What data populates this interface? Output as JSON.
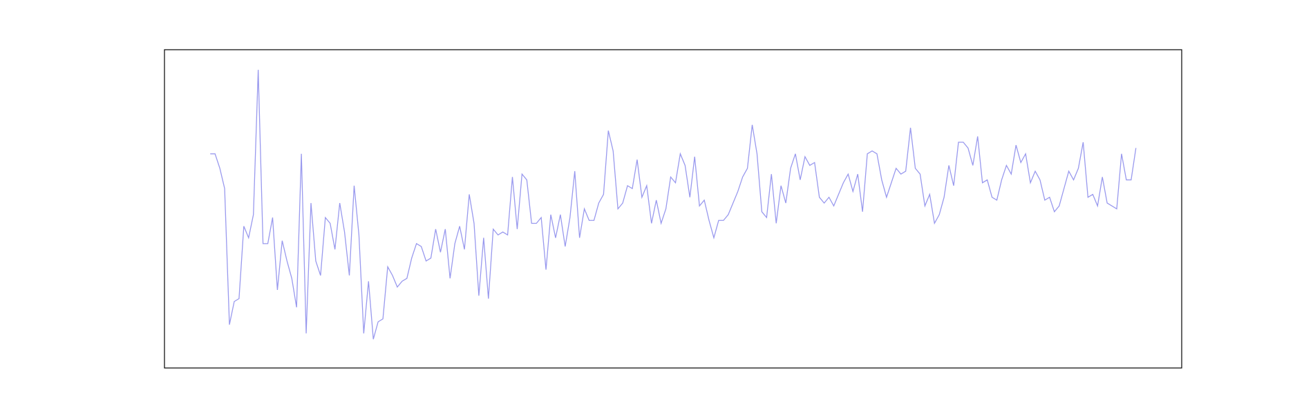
{
  "chart_data": {
    "type": "line",
    "title": "",
    "xlabel": "",
    "ylabel": "",
    "grid": false,
    "axes_visible": false,
    "ylim": [
      0,
      100
    ],
    "series": [
      {
        "color": "#9999ee",
        "values": [
          69,
          69,
          64,
          57,
          10,
          18,
          19,
          44,
          40,
          48,
          98,
          38,
          38,
          47,
          22,
          39,
          32,
          26,
          16,
          69,
          7,
          52,
          32,
          27,
          47,
          45,
          36,
          52,
          42,
          27,
          58,
          41,
          7,
          25,
          5,
          11,
          12,
          30,
          27,
          23,
          25,
          26,
          33,
          38,
          37,
          32,
          33,
          43,
          35,
          43,
          26,
          38,
          44,
          36,
          55,
          45,
          20,
          40,
          19,
          43,
          41,
          42,
          41,
          61,
          43,
          62,
          60,
          45,
          45,
          47,
          29,
          48,
          40,
          48,
          37,
          47,
          63,
          40,
          50,
          46,
          46,
          52,
          55,
          77,
          70,
          50,
          52,
          58,
          57,
          67,
          54,
          58,
          45,
          53,
          45,
          50,
          61,
          59,
          69,
          65,
          54,
          68,
          51,
          53,
          46,
          40,
          46,
          46,
          48,
          52,
          56,
          61,
          64,
          79,
          69,
          49,
          47,
          62,
          45,
          58,
          52,
          64,
          69,
          60,
          68,
          65,
          66,
          54,
          52,
          54,
          51,
          55,
          59,
          62,
          56,
          62,
          49,
          69,
          70,
          69,
          60,
          54,
          59,
          64,
          62,
          63,
          78,
          64,
          62,
          51,
          55,
          45,
          48,
          54,
          65,
          58,
          73,
          73,
          71,
          65,
          75,
          59,
          60,
          54,
          53,
          60,
          65,
          62,
          72,
          66,
          69,
          59,
          63,
          60,
          53,
          54,
          49,
          51,
          57,
          63,
          60,
          64,
          73,
          54,
          55,
          51,
          61,
          52,
          51,
          50,
          69,
          60,
          60,
          71
        ]
      }
    ]
  }
}
